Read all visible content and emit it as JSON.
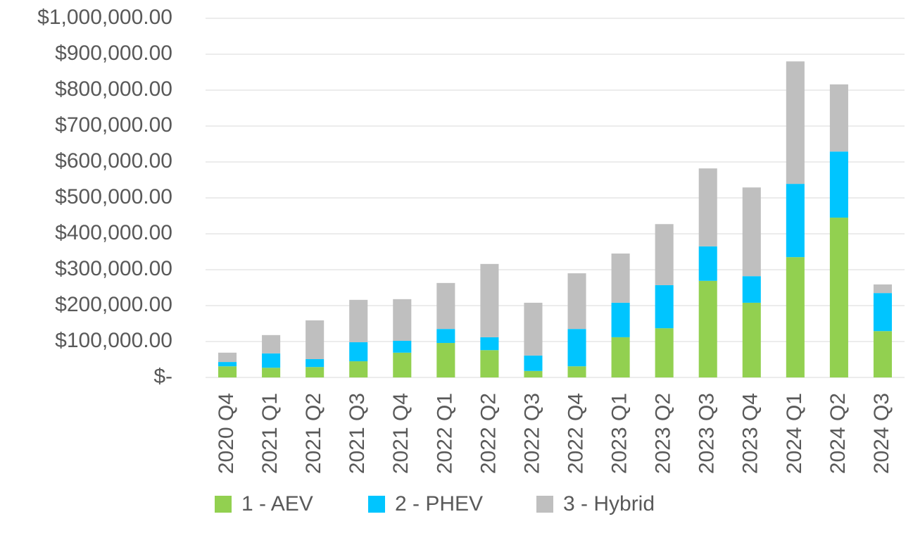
{
  "chart_data": {
    "type": "stacked_bar",
    "categories": [
      "2020 Q4",
      "2021 Q1",
      "2021 Q2",
      "2021 Q3",
      "2021 Q4",
      "2022 Q1",
      "2022 Q2",
      "2022 Q3",
      "2022 Q4",
      "2023 Q1",
      "2023 Q2",
      "2023 Q3",
      "2023 Q4",
      "2024 Q1",
      "2024 Q2",
      "2024 Q3"
    ],
    "series": [
      {
        "name": "1 - AEV",
        "color": "#92d050",
        "values": [
          31000,
          27000,
          29000,
          45000,
          69000,
          96000,
          76000,
          18000,
          31000,
          112000,
          137000,
          269000,
          208000,
          335000,
          445000,
          129000
        ]
      },
      {
        "name": "2 - PHEV",
        "color": "#00c5ff",
        "values": [
          12000,
          40000,
          22000,
          53000,
          33000,
          39000,
          36000,
          43000,
          104000,
          96000,
          120000,
          96000,
          74000,
          204000,
          184000,
          106000
        ]
      },
      {
        "name": "3 - Hybrid",
        "color": "#bfbfbf",
        "values": [
          26000,
          51000,
          108000,
          118000,
          116000,
          128000,
          204000,
          147000,
          155000,
          137000,
          170000,
          217000,
          247000,
          341000,
          187000,
          24000
        ]
      }
    ],
    "ylim": [
      0,
      1000000
    ],
    "yticks": [
      {
        "value": 0,
        "label": "$-"
      },
      {
        "value": 100000,
        "label": "$100,000.00"
      },
      {
        "value": 200000,
        "label": "$200,000.00"
      },
      {
        "value": 300000,
        "label": "$300,000.00"
      },
      {
        "value": 400000,
        "label": "$400,000.00"
      },
      {
        "value": 500000,
        "label": "$500,000.00"
      },
      {
        "value": 600000,
        "label": "$600,000.00"
      },
      {
        "value": 700000,
        "label": "$700,000.00"
      },
      {
        "value": 800000,
        "label": "$800,000.00"
      },
      {
        "value": 900000,
        "label": "$900,000.00"
      },
      {
        "value": 1000000,
        "label": "$1,000,000.00"
      }
    ],
    "grid": true,
    "legend": "bottom"
  }
}
